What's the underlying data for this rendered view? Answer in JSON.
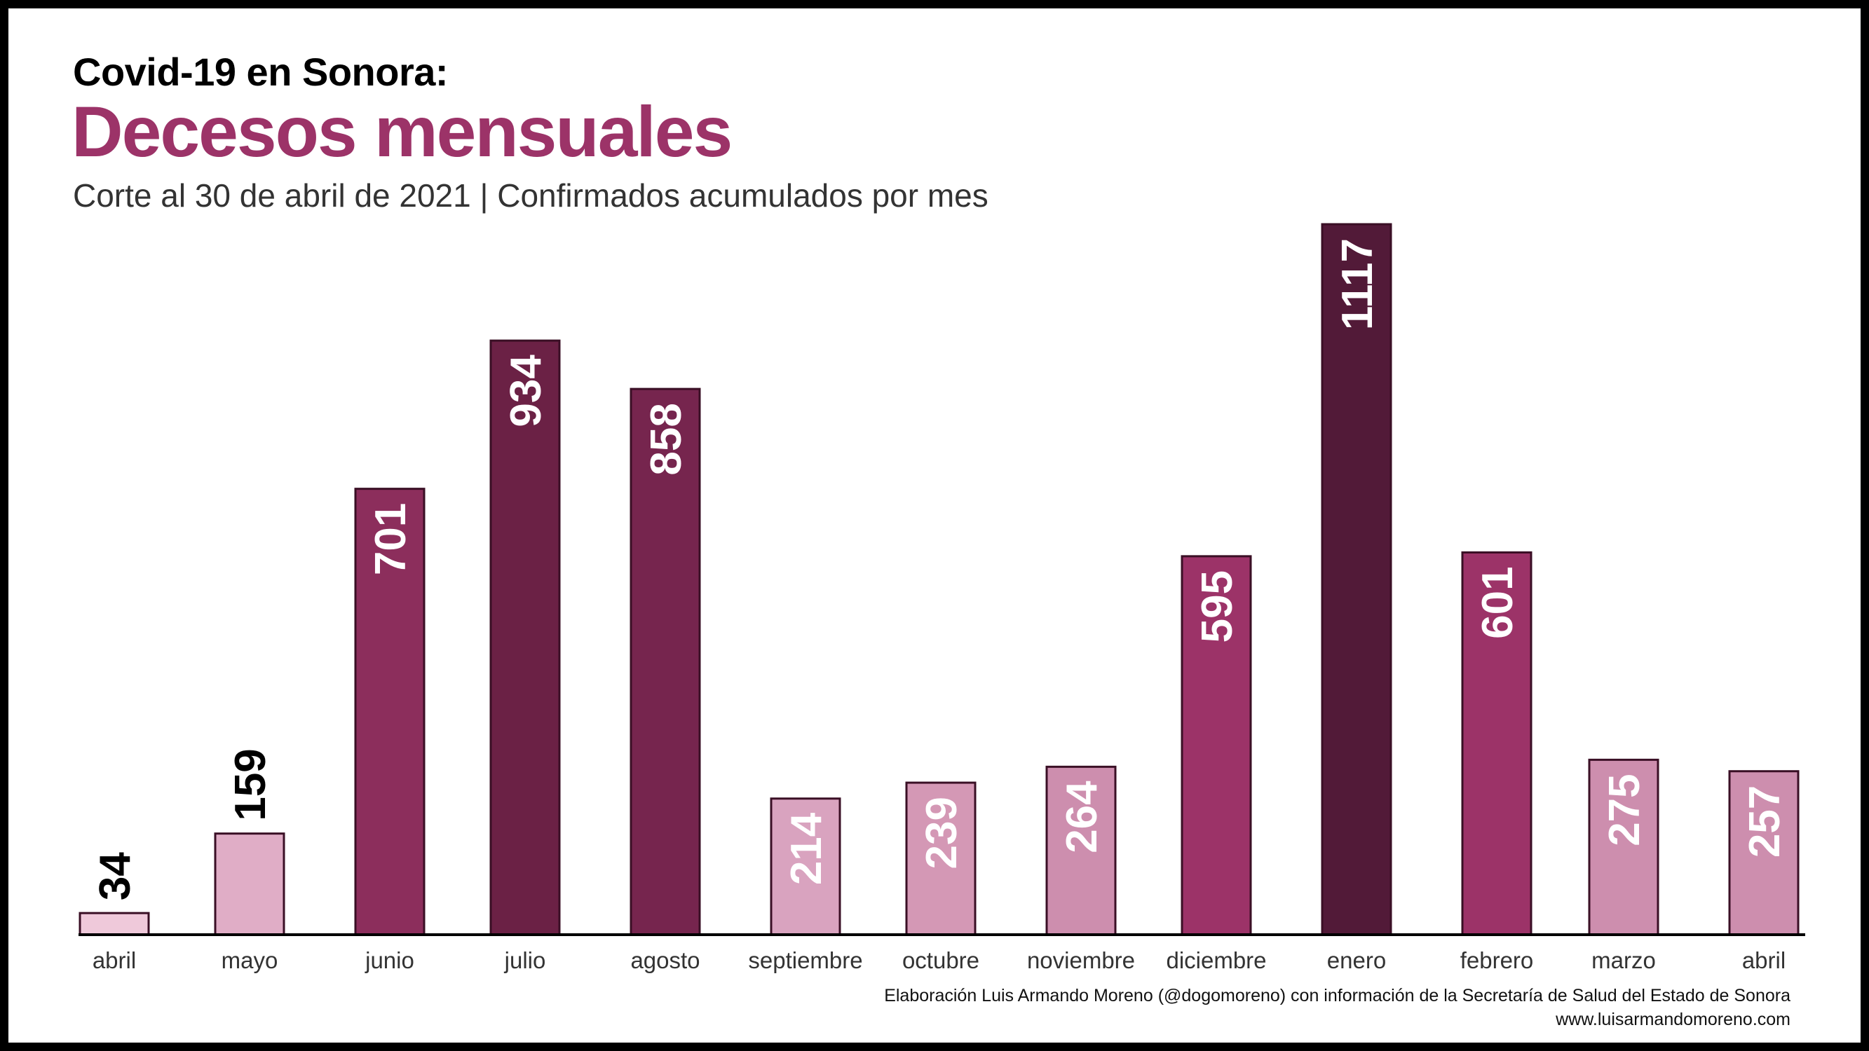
{
  "header": {
    "title_top": "Covid-19 en Sonora:",
    "title_main": "Decesos mensuales",
    "subtitle": "Corte al 30 de abril de 2021 | Confirmados acumulados por mes"
  },
  "credits": {
    "line1": "Elaboración Luis Armando Moreno (@dogomoreno) con información de la Secretaría de Salud del Estado de Sonora",
    "line2": "www.luisarmandomoreno.com"
  },
  "colors": {
    "title": "#9c3368",
    "bar_stroke": "#3a0f25",
    "label_light": "#ffffff",
    "label_dark": "#000000",
    "axis": "#000000",
    "tick_text": "#333333"
  },
  "chart_data": {
    "type": "bar",
    "categories": [
      "abril",
      "mayo",
      "junio",
      "julio",
      "agosto",
      "septiembre",
      "octubre",
      "noviembre",
      "diciembre",
      "enero",
      "febrero",
      "marzo",
      "abril"
    ],
    "values": [
      34,
      159,
      701,
      934,
      858,
      214,
      239,
      264,
      595,
      1117,
      601,
      275,
      257
    ],
    "bar_colors": [
      "#efc9da",
      "#e0adc6",
      "#8c2e5c",
      "#6b2145",
      "#76254e",
      "#d9a3bf",
      "#d498b5",
      "#cd8eae",
      "#9c3368",
      "#521a38",
      "#9c3368",
      "#cd8eae",
      "#cd8eae"
    ],
    "label_colors": [
      "#000000",
      "#000000",
      "#ffffff",
      "#ffffff",
      "#ffffff",
      "#ffffff",
      "#ffffff",
      "#ffffff",
      "#ffffff",
      "#ffffff",
      "#ffffff",
      "#ffffff",
      "#ffffff"
    ],
    "label_inside": [
      false,
      false,
      true,
      true,
      true,
      true,
      true,
      true,
      true,
      true,
      true,
      true,
      true
    ],
    "title": "Decesos mensuales",
    "xlabel": "",
    "ylabel": "",
    "ylim": [
      0,
      1117
    ],
    "grid": false,
    "legend": "none"
  }
}
